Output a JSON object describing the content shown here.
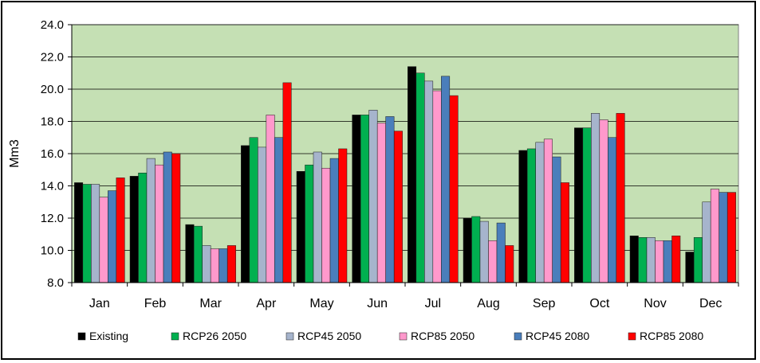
{
  "chart_data": {
    "type": "bar",
    "title": "",
    "xlabel": "",
    "ylabel": "Mm3",
    "ylim": [
      8.0,
      24.0
    ],
    "yticks": [
      "8.0",
      "10.0",
      "12.0",
      "14.0",
      "16.0",
      "18.0",
      "20.0",
      "22.0",
      "24.0"
    ],
    "grid": true,
    "legend_position": "bottom",
    "plot_background": "#c5e0b4",
    "categories": [
      "Jan",
      "Feb",
      "Mar",
      "Apr",
      "May",
      "Jun",
      "Jul",
      "Aug",
      "Sep",
      "Oct",
      "Nov",
      "Dec"
    ],
    "series": [
      {
        "name": "Existing",
        "color": "#000000",
        "values": [
          14.2,
          14.6,
          11.6,
          16.5,
          14.9,
          18.4,
          21.4,
          12.0,
          16.2,
          17.6,
          10.9,
          9.9
        ]
      },
      {
        "name": "RCP26 2050",
        "color": "#00b050",
        "values": [
          14.1,
          14.8,
          11.5,
          17.0,
          15.3,
          18.4,
          21.0,
          12.1,
          16.3,
          17.6,
          10.8,
          10.8
        ]
      },
      {
        "name": "RCP45 2050",
        "color": "#a6b4cc",
        "values": [
          14.1,
          15.7,
          10.3,
          16.4,
          16.1,
          18.7,
          20.5,
          11.8,
          16.7,
          18.5,
          10.8,
          13.0
        ]
      },
      {
        "name": "RCP85 2050",
        "color": "#ff99cc",
        "values": [
          13.3,
          15.3,
          10.1,
          18.4,
          15.1,
          17.9,
          19.9,
          10.6,
          16.9,
          18.1,
          10.6,
          13.8
        ]
      },
      {
        "name": "RCP45 2080",
        "color": "#4a7ebb",
        "values": [
          13.7,
          16.1,
          10.1,
          17.0,
          15.7,
          18.3,
          20.8,
          11.7,
          15.8,
          17.0,
          10.6,
          13.6
        ]
      },
      {
        "name": "RCP85 2080",
        "color": "#ff0000",
        "values": [
          14.5,
          16.0,
          10.3,
          20.4,
          16.3,
          17.4,
          19.6,
          10.3,
          14.2,
          18.5,
          10.9,
          13.6
        ]
      }
    ]
  }
}
